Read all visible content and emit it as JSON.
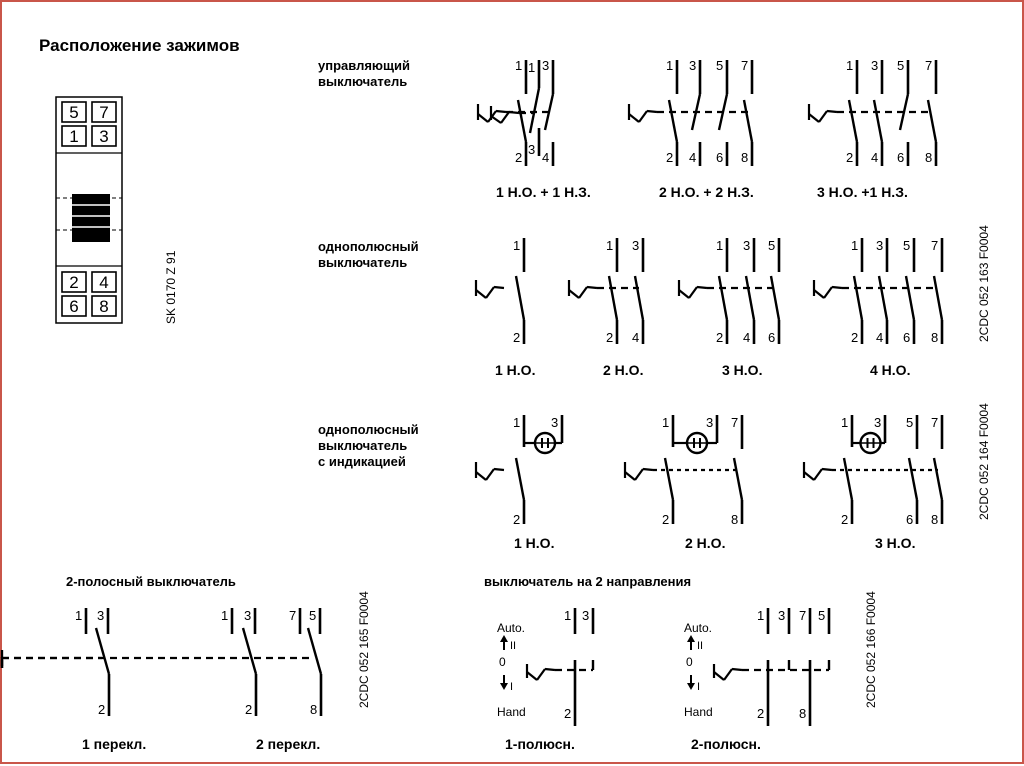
{
  "title": "Расположение зажимов",
  "terminal_block": {
    "top_rows": [
      [
        "5",
        "7"
      ],
      [
        "1",
        "3"
      ]
    ],
    "bottom_rows": [
      [
        "2",
        "4"
      ],
      [
        "6",
        "8"
      ]
    ],
    "code": "SK 0170 Z 91"
  },
  "sections": {
    "control": {
      "caption": [
        "управляющий",
        "выключатель"
      ],
      "labels": [
        "1 Н.О. + 1 Н.З.",
        "2 Н.О. + 2 Н.З.",
        "3 Н.О. +1 Н.З."
      ]
    },
    "single_pole": {
      "caption": [
        "однополюсный",
        "выключатель"
      ],
      "labels": [
        "1 Н.О.",
        "2 Н.О.",
        "3 Н.О.",
        "4 Н.О."
      ]
    },
    "indicator": {
      "caption": [
        "однополюсный",
        "выключатель",
        "с индикацией"
      ],
      "labels": [
        "1 Н.О.",
        "2 Н.О.",
        "3 Н.О."
      ]
    },
    "two_pole": {
      "title": "2-полосный выключатель",
      "labels": [
        "1 перекл.",
        "2 перекл."
      ]
    },
    "two_way": {
      "title": "выключатель на 2 направления",
      "labels": [
        "1-полюсн.",
        "2-полюсн."
      ],
      "switch_positions": [
        "Auto.",
        "II",
        "0",
        "I",
        "Hand"
      ]
    }
  },
  "codes": [
    "2CDC 052 163 F0004",
    "2CDC 052 164 F0004",
    "2CDC 052 165 F0004",
    "2CDC 052 166 F0004"
  ],
  "pin_numbers": {
    "c1": [
      "1",
      "3",
      "2",
      "4"
    ],
    "c2": [
      "1",
      "3",
      "5",
      "7",
      "2",
      "4",
      "6",
      "8"
    ],
    "c3": [
      "1",
      "3",
      "5",
      "7",
      "2",
      "4",
      "6",
      "8"
    ],
    "s1": [
      "1",
      "2"
    ],
    "s2": [
      "1",
      "3",
      "2",
      "4"
    ],
    "s3": [
      "1",
      "3",
      "5",
      "2",
      "4",
      "6"
    ],
    "s4": [
      "1",
      "3",
      "5",
      "7",
      "2",
      "4",
      "6",
      "8"
    ],
    "i1": [
      "1",
      "3",
      "2"
    ],
    "i2": [
      "1",
      "3",
      "7",
      "2",
      "8"
    ],
    "i3": [
      "1",
      "3",
      "5",
      "7",
      "2",
      "6",
      "8"
    ],
    "t1": [
      "1",
      "3",
      "2"
    ],
    "t2": [
      "1",
      "3",
      "7",
      "5",
      "2",
      "8"
    ],
    "w1": [
      "1",
      "3",
      "2"
    ],
    "w2": [
      "1",
      "3",
      "7",
      "5",
      "2",
      "8"
    ]
  },
  "colors": {
    "border": "#c9564a",
    "ink": "#000000"
  }
}
